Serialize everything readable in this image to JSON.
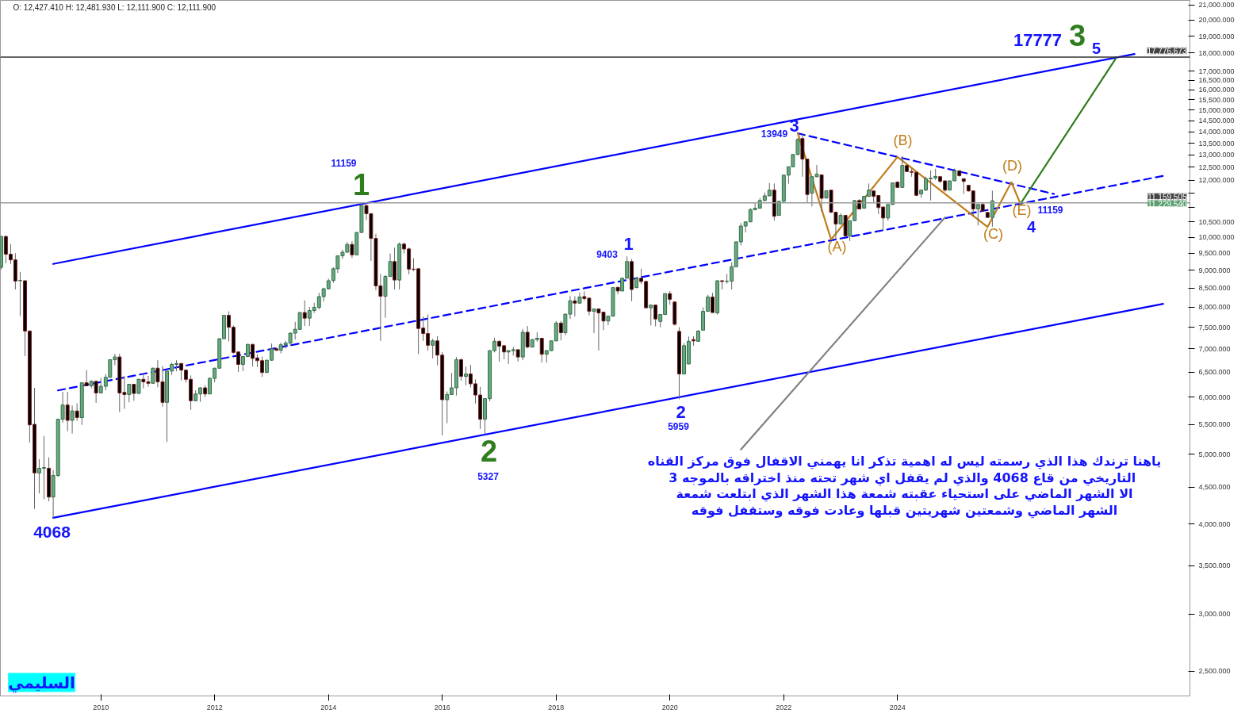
{
  "chart_data": {
    "type": "candlestick",
    "title": "O: 12,427.410  H: 12,481.930  L: 12,111.900  C: 12,111.900",
    "x": [
      "2008-04",
      "2008-05",
      "2008-06",
      "2008-07",
      "2008-08",
      "2008-09",
      "2008-10",
      "2008-11",
      "2008-12",
      "2009-01",
      "2009-02",
      "2009-03",
      "2009-04",
      "2009-05",
      "2009-06",
      "2009-07",
      "2009-08",
      "2009-09",
      "2009-10",
      "2009-11",
      "2009-12",
      "2010-01",
      "2010-02",
      "2010-03",
      "2010-04",
      "2010-05",
      "2010-06",
      "2010-07",
      "2010-08",
      "2010-09",
      "2010-10",
      "2010-11",
      "2010-12",
      "2011-01",
      "2011-02",
      "2011-03",
      "2011-04",
      "2011-05",
      "2011-06",
      "2011-07",
      "2011-08",
      "2011-09",
      "2011-10",
      "2011-11",
      "2011-12",
      "2012-01",
      "2012-02",
      "2012-03",
      "2012-04",
      "2012-05",
      "2012-06",
      "2012-07",
      "2012-08",
      "2012-09",
      "2012-10",
      "2012-11",
      "2012-12",
      "2013-01",
      "2013-02",
      "2013-03",
      "2013-04",
      "2013-05",
      "2013-06",
      "2013-07",
      "2013-08",
      "2013-09",
      "2013-10",
      "2013-11",
      "2013-12",
      "2014-01",
      "2014-02",
      "2014-03",
      "2014-04",
      "2014-05",
      "2014-06",
      "2014-07",
      "2014-08",
      "2014-09",
      "2014-10",
      "2014-11",
      "2014-12",
      "2015-01",
      "2015-02",
      "2015-03",
      "2015-04",
      "2015-05",
      "2015-06",
      "2015-07",
      "2015-08",
      "2015-09",
      "2015-10",
      "2015-11",
      "2015-12",
      "2016-01",
      "2016-02",
      "2016-03",
      "2016-04",
      "2016-05",
      "2016-06",
      "2016-07",
      "2016-08",
      "2016-09",
      "2016-10",
      "2016-11",
      "2016-12",
      "2017-01",
      "2017-02",
      "2017-03",
      "2017-04",
      "2017-05",
      "2017-06",
      "2017-07",
      "2017-08",
      "2017-09",
      "2017-10",
      "2017-11",
      "2017-12",
      "2018-01",
      "2018-02",
      "2018-03",
      "2018-04",
      "2018-05",
      "2018-06",
      "2018-07",
      "2018-08",
      "2018-09",
      "2018-10",
      "2018-11",
      "2018-12",
      "2019-01",
      "2019-02",
      "2019-03",
      "2019-04",
      "2019-05",
      "2019-06",
      "2019-07",
      "2019-08",
      "2019-09",
      "2019-10",
      "2019-11",
      "2019-12",
      "2020-01",
      "2020-02",
      "2020-03",
      "2020-04",
      "2020-05",
      "2020-06",
      "2020-07",
      "2020-08",
      "2020-09",
      "2020-10",
      "2020-11",
      "2020-12",
      "2021-01",
      "2021-02",
      "2021-03",
      "2021-04",
      "2021-05",
      "2021-06",
      "2021-07",
      "2021-08",
      "2021-09",
      "2021-10",
      "2021-11",
      "2021-12",
      "2022-01",
      "2022-02",
      "2022-03",
      "2022-04",
      "2022-05",
      "2022-06",
      "2022-07",
      "2022-08",
      "2022-09",
      "2022-10",
      "2022-11",
      "2022-12",
      "2023-01",
      "2023-02",
      "2023-03",
      "2023-04",
      "2023-05",
      "2023-06",
      "2023-07",
      "2023-08",
      "2023-09",
      "2023-10",
      "2023-11",
      "2023-12",
      "2024-01",
      "2024-02",
      "2024-03",
      "2024-04",
      "2024-05",
      "2024-06",
      "2024-07",
      "2024-08",
      "2024-09",
      "2024-10",
      "2024-11",
      "2024-12",
      "2025-01",
      "2025-02",
      "2025-03",
      "2025-04",
      "2025-05",
      "2025-06",
      "2025-07",
      "2025-08",
      "2025-09"
    ],
    "ohlc": [
      [
        9080,
        10040,
        9020,
        10020
      ],
      [
        10020,
        10060,
        9200,
        9470
      ],
      [
        9470,
        9780,
        9180,
        9300
      ],
      [
        9300,
        9500,
        8460,
        8690
      ],
      [
        8700,
        8950,
        7770,
        8710
      ],
      [
        8700,
        8710,
        6840,
        7410
      ],
      [
        7410,
        7420,
        5190,
        5490
      ],
      [
        5500,
        6180,
        4200,
        4710
      ],
      [
        4710,
        4920,
        4410,
        4780
      ],
      [
        4780,
        5300,
        4330,
        4790
      ],
      [
        4780,
        4950,
        4300,
        4360
      ],
      [
        4360,
        4750,
        4068,
        4670
      ],
      [
        4670,
        5600,
        4650,
        5590
      ],
      [
        5590,
        6100,
        5530,
        5850
      ],
      [
        5850,
        6100,
        5380,
        5570
      ],
      [
        5570,
        5840,
        5340,
        5740
      ],
      [
        5740,
        5880,
        5560,
        5620
      ],
      [
        5620,
        6290,
        5490,
        6280
      ],
      [
        6280,
        6540,
        6220,
        6220
      ],
      [
        6220,
        6330,
        6170,
        6310
      ],
      [
        6310,
        6320,
        5890,
        6080
      ],
      [
        6080,
        6380,
        6070,
        6210
      ],
      [
        6210,
        6460,
        6130,
        6390
      ],
      [
        6390,
        6770,
        6380,
        6760
      ],
      [
        6760,
        6890,
        6640,
        6820
      ],
      [
        6820,
        6890,
        5720,
        6080
      ],
      [
        6090,
        6420,
        5780,
        6050
      ],
      [
        6050,
        6260,
        5900,
        6250
      ],
      [
        6250,
        6260,
        5930,
        6070
      ],
      [
        6070,
        6360,
        6060,
        6350
      ],
      [
        6350,
        6470,
        6170,
        6300
      ],
      [
        6300,
        6420,
        6200,
        6270
      ],
      [
        6270,
        6590,
        6260,
        6580
      ],
      [
        6580,
        6750,
        6190,
        6300
      ],
      [
        6300,
        6630,
        5820,
        5900
      ],
      [
        5900,
        6530,
        5200,
        6520
      ],
      [
        6520,
        6700,
        6440,
        6660
      ],
      [
        6660,
        6750,
        6520,
        6680
      ],
      [
        6680,
        6690,
        6330,
        6540
      ],
      [
        6540,
        6550,
        6290,
        6350
      ],
      [
        6350,
        6430,
        5760,
        5930
      ],
      [
        5930,
        6130,
        5920,
        6060
      ],
      [
        6060,
        6190,
        5910,
        6180
      ],
      [
        6180,
        6230,
        6000,
        6060
      ],
      [
        6060,
        6390,
        6060,
        6370
      ],
      [
        6370,
        6590,
        6290,
        6580
      ],
      [
        6580,
        7240,
        6570,
        7230
      ],
      [
        7230,
        7800,
        7220,
        7790
      ],
      [
        7790,
        7890,
        7170,
        7500
      ],
      [
        7500,
        7540,
        6890,
        6920
      ],
      [
        6930,
        6940,
        6500,
        6660
      ],
      [
        6660,
        6840,
        6520,
        6830
      ],
      [
        6830,
        7110,
        6820,
        7100
      ],
      [
        7100,
        7110,
        6620,
        6790
      ],
      [
        6800,
        6880,
        6600,
        6740
      ],
      [
        6740,
        6830,
        6400,
        6490
      ],
      [
        6490,
        6760,
        6480,
        6750
      ],
      [
        6750,
        7120,
        6740,
        7000
      ],
      [
        7000,
        7030,
        6950,
        6970
      ],
      [
        6970,
        7140,
        6900,
        7090
      ],
      [
        7090,
        7180,
        7010,
        7130
      ],
      [
        7130,
        7370,
        7060,
        7360
      ],
      [
        7360,
        7630,
        7210,
        7450
      ],
      [
        7450,
        7870,
        7440,
        7860
      ],
      [
        7860,
        8170,
        7530,
        7720
      ],
      [
        7720,
        8000,
        7530,
        7910
      ],
      [
        7910,
        8110,
        7850,
        7990
      ],
      [
        7990,
        8370,
        7940,
        8270
      ],
      [
        8270,
        8510,
        8140,
        8480
      ],
      [
        8480,
        8760,
        8460,
        8700
      ],
      [
        8710,
        9080,
        8640,
        9040
      ],
      [
        9040,
        9430,
        8920,
        9420
      ],
      [
        9420,
        9610,
        9330,
        9530
      ],
      [
        9530,
        9840,
        9520,
        9770
      ],
      [
        9770,
        9870,
        9350,
        9450
      ],
      [
        9450,
        10160,
        9440,
        10150
      ],
      [
        10150,
        11159,
        10140,
        11060
      ],
      [
        11060,
        11100,
        10560,
        10780
      ],
      [
        10780,
        10790,
        9270,
        9960
      ],
      [
        9960,
        10110,
        8440,
        8560
      ],
      [
        8560,
        8890,
        7180,
        8280
      ],
      [
        8280,
        8860,
        7730,
        8820
      ],
      [
        8820,
        9490,
        8810,
        9250
      ],
      [
        9250,
        9670,
        8460,
        8720
      ],
      [
        8720,
        9830,
        8460,
        9780
      ],
      [
        9780,
        9830,
        9490,
        9630
      ],
      [
        9630,
        9670,
        8880,
        9030
      ],
      [
        9030,
        9350,
        8970,
        9020
      ],
      [
        9040,
        9050,
        6880,
        7470
      ],
      [
        7480,
        7760,
        7180,
        7350
      ],
      [
        7350,
        7810,
        6960,
        7080
      ],
      [
        7080,
        7230,
        6790,
        7180
      ],
      [
        7180,
        7290,
        6640,
        6860
      ],
      [
        6860,
        6930,
        5310,
        5950
      ],
      [
        5950,
        6110,
        5520,
        6050
      ],
      [
        6050,
        6480,
        6040,
        6180
      ],
      [
        6180,
        6820,
        6030,
        6760
      ],
      [
        6760,
        6790,
        6320,
        6410
      ],
      [
        6410,
        6610,
        6230,
        6460
      ],
      [
        6460,
        6650,
        6190,
        6260
      ],
      [
        6260,
        6350,
        5880,
        6040
      ],
      [
        6040,
        6200,
        5420,
        5590
      ],
      [
        5590,
        5980,
        5327,
        5970
      ],
      [
        5970,
        6970,
        5920,
        6960
      ],
      [
        6960,
        7250,
        6920,
        7170
      ],
      [
        7170,
        7190,
        6720,
        7060
      ],
      [
        7070,
        7080,
        6770,
        6930
      ],
      [
        6930,
        6970,
        6670,
        6960
      ],
      [
        6960,
        7040,
        6850,
        6980
      ],
      [
        6980,
        6990,
        6720,
        6820
      ],
      [
        6820,
        7460,
        6750,
        7380
      ],
      [
        7380,
        7530,
        7010,
        7040
      ],
      [
        7040,
        7220,
        7030,
        7210
      ],
      [
        7210,
        7380,
        7160,
        7240
      ],
      [
        7240,
        7250,
        6700,
        6880
      ],
      [
        6880,
        6970,
        6700,
        6960
      ],
      [
        6960,
        7190,
        6950,
        7180
      ],
      [
        7180,
        7650,
        7170,
        7600
      ],
      [
        7600,
        7650,
        7190,
        7370
      ],
      [
        7370,
        7830,
        7310,
        7820
      ],
      [
        7820,
        8280,
        7700,
        8160
      ],
      [
        8160,
        8280,
        7760,
        8100
      ],
      [
        8100,
        8380,
        8090,
        8260
      ],
      [
        8270,
        8410,
        8170,
        8220
      ],
      [
        8230,
        8240,
        7790,
        7890
      ],
      [
        7890,
        7960,
        7360,
        7950
      ],
      [
        7950,
        7960,
        6960,
        7850
      ],
      [
        7870,
        7880,
        7430,
        7650
      ],
      [
        7650,
        7780,
        7550,
        7770
      ],
      [
        7770,
        8520,
        7760,
        8510
      ],
      [
        8520,
        8530,
        8330,
        8420
      ],
      [
        8420,
        8780,
        8410,
        8770
      ],
      [
        8770,
        9403,
        8760,
        9250
      ],
      [
        9250,
        9320,
        8150,
        8460
      ],
      [
        8510,
        8780,
        8500,
        8770
      ],
      [
        8770,
        9040,
        8610,
        8680
      ],
      [
        8680,
        8690,
        7970,
        7980
      ],
      [
        7980,
        8060,
        7540,
        8050
      ],
      [
        8050,
        8060,
        7520,
        7700
      ],
      [
        7640,
        7820,
        7500,
        7810
      ],
      [
        7810,
        8360,
        7800,
        8350
      ],
      [
        8350,
        8420,
        8060,
        8200
      ],
      [
        8130,
        8140,
        7540,
        7570
      ],
      [
        7400,
        7500,
        5959,
        6460
      ],
      [
        6460,
        7130,
        6450,
        7070
      ],
      [
        6670,
        7280,
        6660,
        7170
      ],
      [
        7210,
        7290,
        7070,
        7180
      ],
      [
        7170,
        7430,
        7160,
        7410
      ],
      [
        7430,
        7990,
        7420,
        7890
      ],
      [
        7890,
        8320,
        7880,
        8260
      ],
      [
        8260,
        8370,
        7850,
        7860
      ],
      [
        7850,
        8710,
        7810,
        8700
      ],
      [
        8700,
        8720,
        8460,
        8680
      ],
      [
        8680,
        8890,
        8620,
        8690
      ],
      [
        8690,
        9230,
        8460,
        9100
      ],
      [
        9100,
        9860,
        9090,
        9850
      ],
      [
        9850,
        10460,
        9740,
        10360
      ],
      [
        10360,
        10510,
        10150,
        10500
      ],
      [
        10500,
        10970,
        10490,
        10920
      ],
      [
        10920,
        11150,
        10890,
        10970
      ],
      [
        10970,
        11330,
        10960,
        11240
      ],
      [
        11240,
        11530,
        11210,
        11410
      ],
      [
        11410,
        11890,
        11400,
        11620
      ],
      [
        11620,
        11870,
        10540,
        10690
      ],
      [
        10720,
        11240,
        10710,
        11210
      ],
      [
        11210,
        12200,
        11200,
        12190
      ],
      [
        12190,
        12530,
        11860,
        12520
      ],
      [
        12520,
        13030,
        12510,
        13020
      ],
      [
        13020,
        13730,
        13000,
        13660
      ],
      [
        13700,
        13949,
        12130,
        12830
      ],
      [
        12830,
        12840,
        11150,
        11460
      ],
      [
        11510,
        12140,
        11030,
        12130
      ],
      [
        12130,
        12590,
        12100,
        12230
      ],
      [
        12200,
        12210,
        10840,
        11320
      ],
      [
        11330,
        11610,
        11320,
        11600
      ],
      [
        11620,
        11630,
        10790,
        10830
      ],
      [
        10830,
        10840,
        9920,
        10430
      ],
      [
        10430,
        10790,
        10420,
        10720
      ],
      [
        10720,
        10730,
        10020,
        10040
      ],
      [
        10040,
        10550,
        9880,
        10540
      ],
      [
        10540,
        11250,
        10530,
        11240
      ],
      [
        11240,
        11290,
        10930,
        10940
      ],
      [
        10970,
        11400,
        10960,
        11390
      ],
      [
        11390,
        11870,
        11380,
        11620
      ],
      [
        11590,
        11600,
        11150,
        11390
      ],
      [
        11420,
        11430,
        10760,
        10990
      ],
      [
        11010,
        11020,
        10210,
        10630
      ],
      [
        10630,
        11110,
        10540,
        11100
      ],
      [
        11100,
        11900,
        11090,
        11890
      ],
      [
        11920,
        11950,
        11710,
        11720
      ],
      [
        11720,
        12950,
        11710,
        12570
      ],
      [
        12570,
        12600,
        12320,
        12330
      ],
      [
        12330,
        12450,
        12130,
        12300
      ],
      [
        12300,
        12310,
        11400,
        11430
      ],
      [
        11480,
        11630,
        11340,
        11620
      ],
      [
        11620,
        12130,
        11590,
        12050
      ],
      [
        12050,
        12380,
        11240,
        12070
      ],
      [
        12080,
        12440,
        12000,
        12140
      ],
      [
        12130,
        12140,
        11890,
        11950
      ],
      [
        11970,
        11980,
        11560,
        11620
      ],
      [
        11620,
        11980,
        11610,
        11970
      ],
      [
        11970,
        12450,
        11960,
        12360
      ],
      [
        12360,
        12370,
        12130,
        12170
      ],
      [
        12050,
        12060,
        11480,
        11950
      ],
      [
        11800,
        11810,
        11560,
        11590
      ],
      [
        11590,
        11600,
        10690,
        10940
      ],
      [
        10940,
        11110,
        10380,
        11100
      ],
      [
        11100,
        11150,
        10850,
        10870
      ],
      [
        10820,
        10830,
        10630,
        10650
      ],
      [
        10650,
        11600,
        10340,
        11230
      ]
    ],
    "series": [
      {
        "type": "line",
        "x": [
          "2009-03",
          "2028-03"
        ],
        "values": [
          9180,
          17950
        ],
        "color": "#0000ff",
        "line_style": "solid"
      },
      {
        "type": "line",
        "x": [
          "2009-03",
          "2028-09"
        ],
        "values": [
          4080,
          8080
        ],
        "color": "#0000ff",
        "line_style": "solid"
      },
      {
        "type": "line",
        "x": [
          "2009-04",
          "2028-09"
        ],
        "values": [
          6130,
          12160
        ],
        "color": "#0000ff",
        "line_style": "dashed"
      },
      {
        "type": "line",
        "x": [
          "2022-04",
          "2026-10"
        ],
        "values": [
          13930,
          11480
        ],
        "color": "#0000ff",
        "line_style": "dashed"
      },
      {
        "type": "line",
        "x": [
          "2022-04",
          "2022-11",
          "2024-01",
          "2025-08",
          "2026-01",
          "2026-03"
        ],
        "values": [
          13949,
          9925,
          12920,
          10330,
          11920,
          11110
        ],
        "color": "#c07d17",
        "line_style": "solid"
      },
      {
        "type": "line",
        "x": [
          "2026-03",
          "2027-11"
        ],
        "values": [
          11130,
          17680
        ],
        "color": "#2e7d1e",
        "line_style": "solid"
      },
      {
        "type": "line",
        "x": [
          "2021-04",
          "2024-11"
        ],
        "values": [
          5075,
          10650
        ],
        "color": "#808080",
        "line_style": "solid"
      }
    ],
    "xlim": [
      "2008-03-27",
      "2029-02-20"
    ],
    "xticks": [
      "2010",
      "2012",
      "2014",
      "2016",
      "2018",
      "2020",
      "2022",
      "2024"
    ],
    "ylim": [
      2310,
      21300
    ],
    "log": "y",
    "yticks": [
      {
        "value": 2500,
        "label": "2,500.000"
      },
      {
        "value": 3000,
        "label": "3,000.000"
      },
      {
        "value": 3500,
        "label": "3,500.000"
      },
      {
        "value": 4000,
        "label": "4,000.000"
      },
      {
        "value": 4500,
        "label": "4,500.000"
      },
      {
        "value": 5000,
        "label": "5,000.000"
      },
      {
        "value": 5500,
        "label": "5,500.000"
      },
      {
        "value": 6000,
        "label": "6,000.000"
      },
      {
        "value": 6500,
        "label": "6,500.000"
      },
      {
        "value": 7000,
        "label": "7,000.000"
      },
      {
        "value": 7500,
        "label": "7,500.000"
      },
      {
        "value": 8000,
        "label": "8,000.000"
      },
      {
        "value": 8500,
        "label": "8,500.000"
      },
      {
        "value": 9000,
        "label": "9,000.000"
      },
      {
        "value": 9500,
        "label": "9,500.000"
      },
      {
        "value": 10000,
        "label": "10,000.000"
      },
      {
        "value": 10500,
        "label": "10,500.000"
      },
      {
        "value": 11000,
        "label": null
      },
      {
        "value": 11500,
        "label": null
      },
      {
        "value": 12000,
        "label": "12,000.000"
      },
      {
        "value": 12500,
        "label": "12,500.000"
      },
      {
        "value": 13000,
        "label": "13,000.000"
      },
      {
        "value": 13500,
        "label": "13,500.000"
      },
      {
        "value": 14000,
        "label": "14,000.000"
      },
      {
        "value": 14500,
        "label": "14,500.000"
      },
      {
        "value": 15000,
        "label": "15,000.000"
      },
      {
        "value": 15500,
        "label": "15,500.000"
      },
      {
        "value": 16000,
        "label": "16,000.000"
      },
      {
        "value": 16500,
        "label": "16,500.000"
      },
      {
        "value": 17000,
        "label": "17,000.000"
      },
      {
        "value": 18000,
        "label": "18,000.000"
      },
      {
        "value": 19000,
        "label": "19,000.000"
      },
      {
        "value": 20000,
        "label": "20,000.000"
      },
      {
        "value": 21000,
        "label": "21,000.000"
      }
    ],
    "ref_lines": [
      {
        "axis": "y",
        "value": 11159.505,
        "label": "11,159.505",
        "color": "#999999"
      },
      {
        "axis": "y",
        "value": 17776.673,
        "label": "17,776.673",
        "color": "#333333"
      }
    ],
    "annotations": [
      "4068",
      "11159",
      "1",
      "2",
      "5327",
      "9403",
      "1",
      "2",
      "5959",
      "13949",
      "3",
      "(A)",
      "(B)",
      "(C)",
      "(D)",
      "(E)",
      "11159",
      "4",
      "17777",
      "3",
      "5",
      "11,229.540",
      "ياهنا ترندك هذا الذي رسمته ليس له اهمية تذكر انا يهمني الاقفال فوق مركز القناه\nالتاريخي من قاع 4068 والذي لم يقفل اي  شهر تحته منذ اختراقه بالموجه 3\nالا الشهر الماضي على استحياء عقبته شمعة هذا الشهر الذي ابتلعت شمعة\nالشهر الماضي وشمعتين شهريتين قبلها وعادت فوقه وستقفل فوقه",
      "السليمي"
    ]
  }
}
